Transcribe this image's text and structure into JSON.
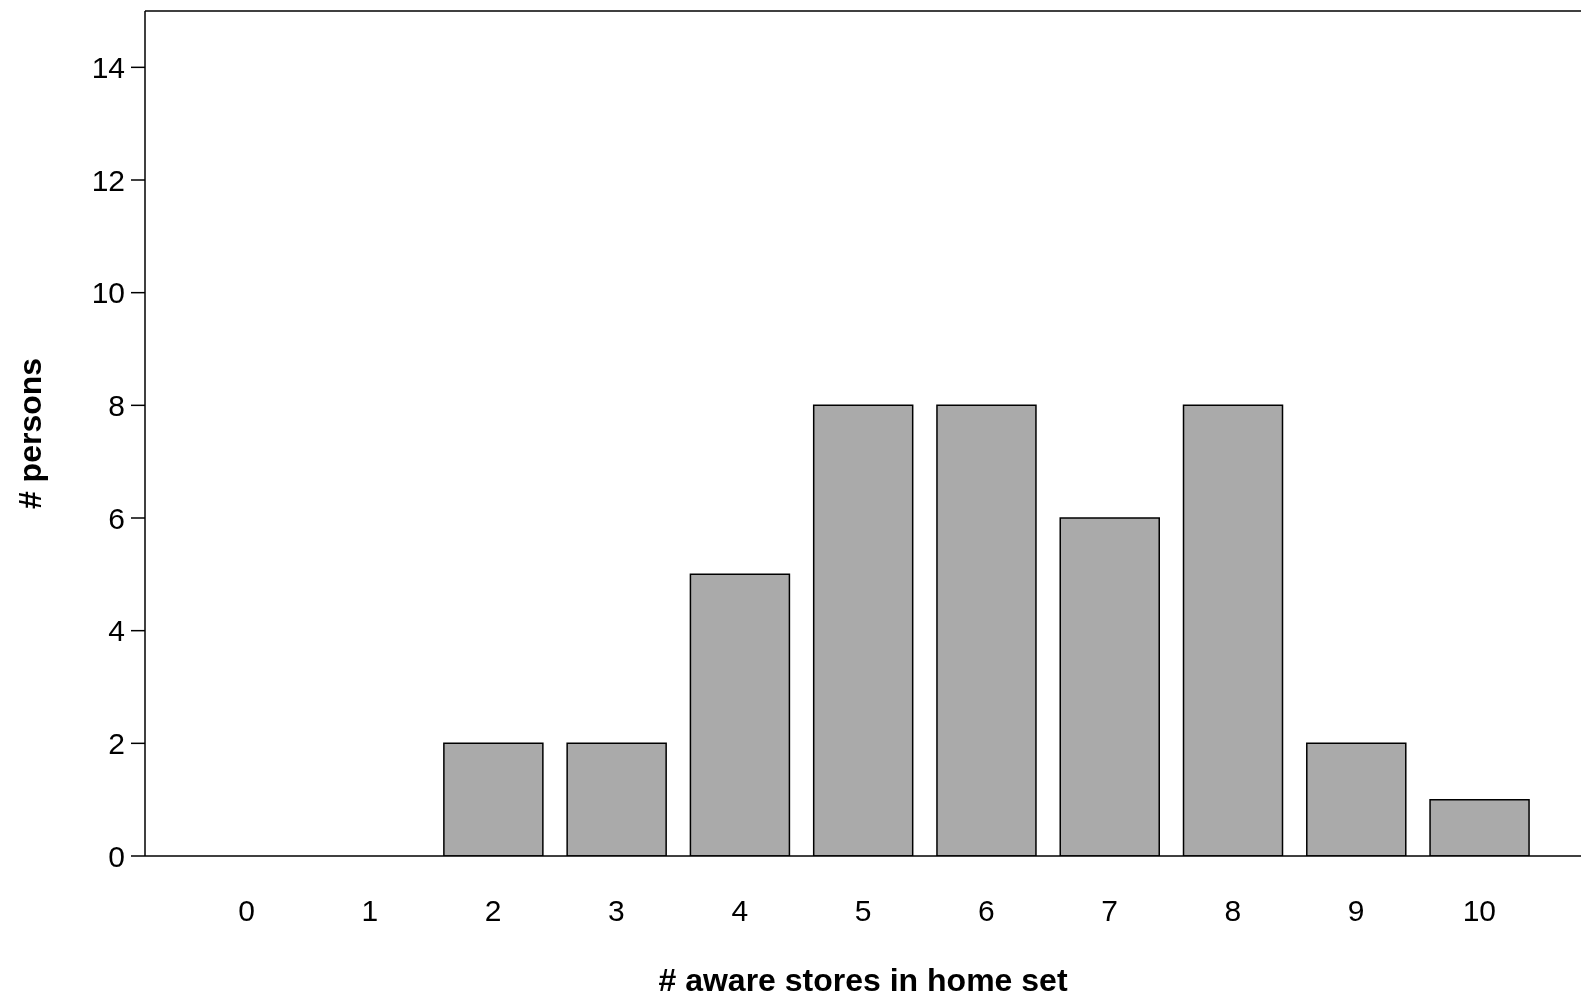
{
  "chart_data": {
    "type": "bar",
    "xlabel": "# aware stores in home set",
    "ylabel": "# persons",
    "categories": [
      "0",
      "1",
      "2",
      "3",
      "4",
      "5",
      "6",
      "7",
      "8",
      "9",
      "10"
    ],
    "values": [
      0,
      0,
      2,
      2,
      5,
      8,
      8,
      6,
      8,
      2,
      1
    ],
    "color": "#aaaaaa",
    "ylim": [
      0,
      15
    ],
    "yticks": [
      0,
      2,
      4,
      6,
      8,
      10,
      12,
      14
    ],
    "grid": false
  }
}
